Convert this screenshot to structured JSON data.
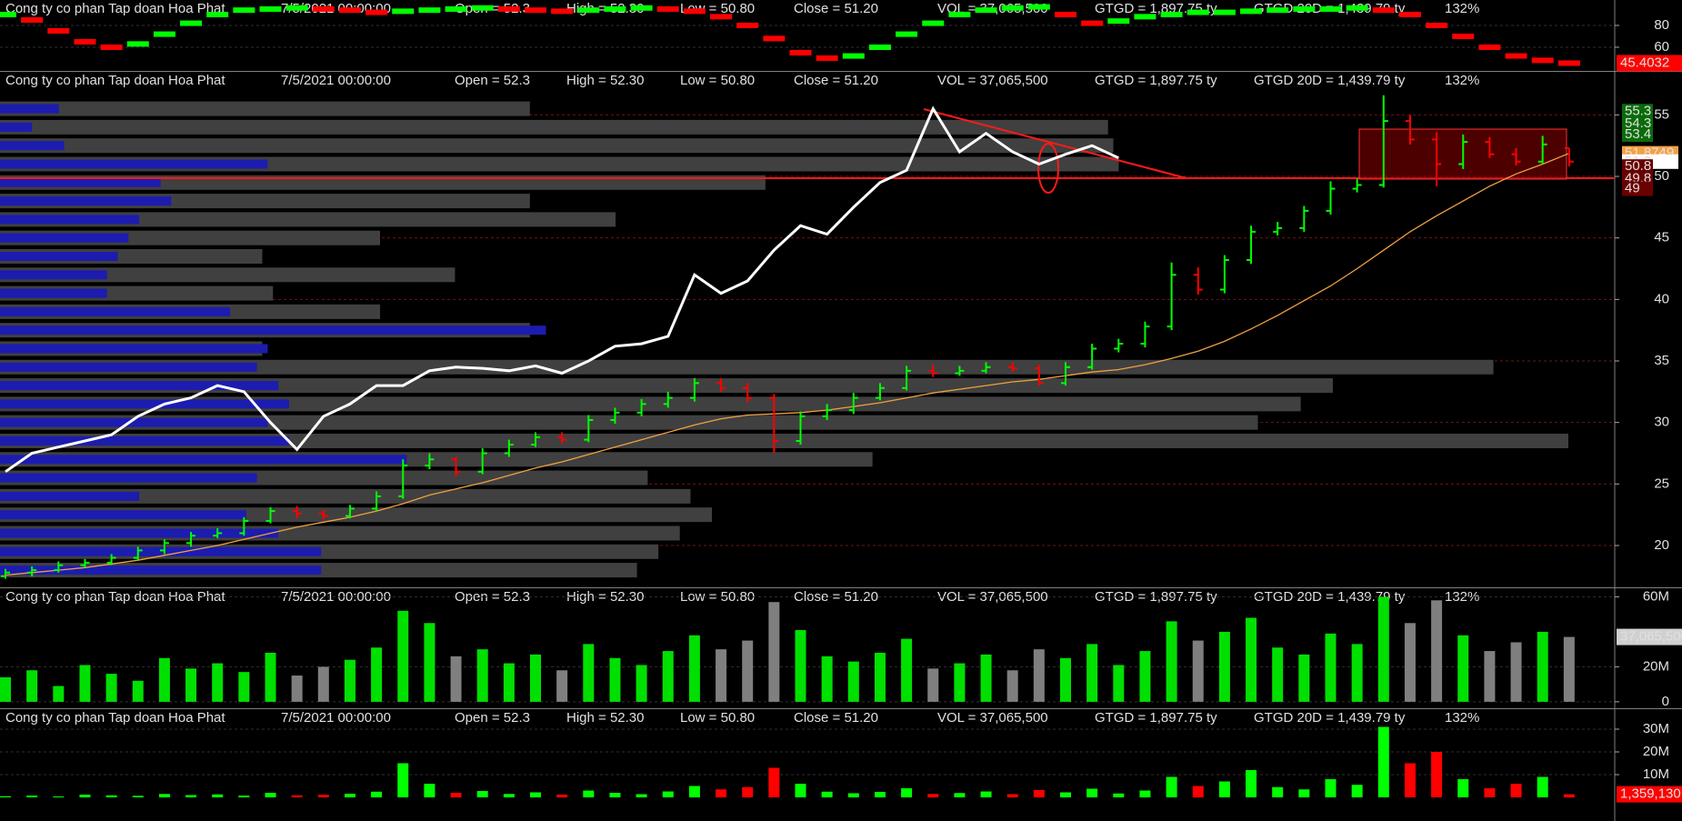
{
  "header": {
    "company": "Cong ty co phan Tap doan Hoa Phat",
    "date": "7/5/2021 00:00:00",
    "open": "Open = 52.3",
    "high": "High = 52.30",
    "low": "Low = 50.80",
    "close": "Close = 51.20",
    "vol": "VOL = 37,065,500",
    "gtgd": "GTGD = 1,897.75  ty",
    "gtgd20": "GTGD 20D = 1,439.79  ty",
    "pct": "132%"
  },
  "chart_data": [
    {
      "type": "oscillator",
      "values": [
        90,
        85,
        75,
        65,
        60,
        63,
        72,
        82,
        90,
        94,
        95,
        96,
        95,
        94,
        92,
        93,
        94,
        95,
        96,
        95,
        94,
        93,
        94,
        95,
        96,
        95,
        93,
        88,
        80,
        68,
        55,
        50,
        52,
        60,
        72,
        82,
        90,
        94,
        96,
        97,
        90,
        82,
        84,
        88,
        90,
        92,
        92,
        93,
        94,
        95,
        95,
        96,
        94,
        90,
        80,
        70,
        60,
        52,
        48,
        45.4032
      ],
      "ylim": [
        38.3,
        103.3
      ],
      "yticks": [
        60,
        80
      ],
      "marker": 45.4032,
      "colors": {
        "up": "#00ff00",
        "down": "#ff0000",
        "marker": "#ff0000"
      }
    },
    {
      "type": "ohlc",
      "open": [
        17.5,
        17.8,
        18.0,
        18.4,
        18.6,
        19.0,
        19.6,
        20.2,
        20.8,
        21.0,
        22.0,
        22.8,
        22.6,
        22.4,
        23.0,
        24.0,
        26.5,
        27.0,
        26.0,
        27.5,
        28.2,
        28.8,
        28.6,
        30.2,
        30.8,
        31.5,
        32.0,
        33.2,
        32.8,
        32.0,
        28.5,
        30.5,
        31.0,
        32.0,
        32.8,
        34.2,
        34.0,
        34.2,
        34.5,
        34.4,
        33.2,
        34.5,
        36.0,
        36.4,
        37.8,
        42.0,
        40.8,
        43.2,
        45.5,
        45.8,
        47.2,
        49.0,
        49.3,
        54.5,
        53.0,
        51.0,
        52.8,
        51.8,
        51.2,
        52.3
      ],
      "high": [
        18.1,
        18.3,
        18.7,
        18.9,
        19.3,
        19.9,
        20.5,
        21.1,
        21.4,
        22.3,
        23.1,
        23.2,
        22.9,
        23.3,
        24.4,
        27.0,
        27.5,
        27.2,
        27.9,
        28.6,
        29.2,
        29.2,
        30.6,
        31.2,
        31.9,
        32.5,
        33.6,
        33.6,
        33.2,
        32.3,
        30.9,
        31.5,
        32.4,
        33.2,
        34.6,
        34.7,
        34.6,
        34.9,
        34.9,
        34.7,
        34.9,
        36.4,
        36.8,
        38.2,
        43.0,
        42.6,
        43.6,
        46.0,
        46.3,
        47.6,
        49.6,
        49.8,
        56.6,
        55.0,
        53.6,
        53.4,
        53.2,
        52.3,
        53.3,
        52.3
      ],
      "low": [
        17.3,
        17.5,
        17.8,
        18.2,
        18.4,
        18.8,
        19.3,
        19.9,
        20.6,
        20.8,
        21.8,
        22.2,
        22.1,
        22.2,
        22.8,
        23.8,
        26.2,
        25.6,
        25.8,
        27.2,
        28.0,
        28.3,
        28.4,
        29.9,
        30.5,
        31.2,
        31.7,
        32.5,
        31.6,
        27.5,
        28.2,
        30.2,
        30.7,
        31.8,
        32.6,
        33.7,
        33.8,
        34.0,
        34.1,
        33.0,
        33.0,
        34.3,
        35.7,
        36.1,
        37.5,
        40.4,
        40.5,
        42.9,
        45.2,
        45.5,
        46.9,
        48.7,
        49.1,
        52.6,
        49.2,
        50.6,
        51.5,
        50.9,
        51.0,
        50.8
      ],
      "close": [
        17.8,
        18.0,
        18.4,
        18.6,
        19.0,
        19.6,
        20.2,
        20.8,
        21.0,
        22.0,
        22.8,
        22.6,
        22.4,
        23.0,
        24.0,
        26.5,
        27.0,
        26.0,
        27.5,
        28.2,
        28.8,
        28.6,
        30.2,
        30.8,
        31.5,
        32.0,
        33.2,
        32.8,
        32.0,
        28.5,
        30.5,
        31.0,
        32.0,
        32.8,
        34.2,
        34.0,
        34.2,
        34.5,
        34.4,
        33.2,
        34.5,
        36.0,
        36.4,
        37.8,
        42.0,
        40.8,
        43.2,
        45.5,
        45.8,
        47.2,
        49.0,
        49.3,
        54.5,
        53.0,
        51.0,
        52.8,
        51.8,
        51.2,
        52.6,
        51.2
      ],
      "colors": {
        "up": "#00ff00",
        "down": "#ff0000"
      },
      "lines": [
        {
          "color": "#f0a040",
          "values": [
            17.6,
            17.8,
            18.0,
            18.2,
            18.5,
            18.8,
            19.2,
            19.6,
            20.0,
            20.5,
            21.0,
            21.5,
            21.9,
            22.3,
            22.8,
            23.4,
            24.1,
            24.6,
            25.1,
            25.7,
            26.3,
            26.8,
            27.4,
            28.0,
            28.6,
            29.2,
            29.8,
            30.3,
            30.6,
            30.7,
            30.8,
            31.0,
            31.3,
            31.6,
            32.0,
            32.4,
            32.7,
            33.0,
            33.3,
            33.5,
            33.8,
            34.1,
            34.3,
            34.7,
            35.2,
            35.8,
            36.6,
            37.6,
            38.7,
            39.9,
            41.1,
            42.5,
            44.0,
            45.5,
            46.8,
            48.0,
            49.2,
            50.2,
            51.0,
            51.8749
          ]
        },
        {
          "color": "#ffffff",
          "values": [
            26.0,
            27.5,
            28.0,
            28.5,
            29.0,
            30.5,
            31.5,
            32.0,
            33.0,
            32.5,
            30.0,
            27.8,
            30.5,
            31.5,
            33.0,
            33.0,
            34.2,
            34.5,
            34.4,
            34.2,
            34.6,
            34.0,
            35.0,
            36.2,
            36.4,
            37.0,
            42.0,
            40.5,
            41.5,
            44.0,
            46.0,
            45.3,
            47.5,
            49.5,
            50.5,
            55.5,
            52.0,
            53.5,
            52.0,
            51.0,
            51.8,
            52.5,
            51.5,
            null,
            null,
            null,
            null,
            null,
            null,
            null,
            null,
            null,
            null,
            null,
            null,
            null,
            null,
            null,
            null,
            null
          ]
        }
      ],
      "volume_profile": {
        "prices": [
          55.5,
          54,
          52.5,
          51,
          49.5,
          48,
          46.5,
          45,
          43.5,
          42,
          40.5,
          39,
          37.5,
          36,
          34.5,
          33,
          31.5,
          30,
          28.5,
          27,
          25.5,
          24,
          22.5,
          21,
          19.5,
          18
        ],
        "values": [
          495,
          1035,
          1040,
          1045,
          715,
          495,
          575,
          355,
          245,
          425,
          255,
          355,
          495,
          245,
          1395,
          1245,
          1215,
          1175,
          1465,
          815,
          605,
          645,
          665,
          635,
          615,
          595
        ],
        "blue_values": [
          55,
          30,
          60,
          250,
          150,
          160,
          130,
          120,
          110,
          100,
          100,
          215,
          510,
          250,
          240,
          260,
          270,
          250,
          270,
          380,
          240,
          130,
          230,
          260,
          300,
          300
        ],
        "colors": {
          "values": "#404040",
          "blue_values": "#1c1cb0"
        }
      },
      "ylim": [
        16.6,
        58.5
      ],
      "yticks": [
        20,
        25,
        30,
        35,
        40,
        45,
        50,
        55
      ],
      "price_labels": [
        {
          "value": 55.3,
          "color": "#0b6b0b"
        },
        {
          "value": 54.3,
          "color": "#0b6b0b"
        },
        {
          "value": 53.4,
          "color": "#0b6b0b"
        },
        {
          "value": 51.8749,
          "color": "#f5a142"
        },
        {
          "value": 51.2,
          "color": "#ffffff"
        },
        {
          "value": 50.8,
          "color": "#6a0000"
        },
        {
          "value": 49.8,
          "color": "#6a0000"
        },
        {
          "value": 49,
          "color": "#6a0000"
        }
      ]
    },
    {
      "type": "bar",
      "values": [
        14000000,
        18000000,
        9000000,
        21000000,
        16000000,
        12000000,
        25000000,
        19000000,
        22000000,
        17000000,
        28000000,
        15000000,
        20000000,
        24000000,
        31000000,
        52000000,
        45000000,
        26000000,
        30000000,
        22000000,
        27000000,
        18000000,
        33000000,
        25000000,
        21000000,
        29000000,
        38000000,
        30000000,
        35000000,
        57000000,
        41000000,
        26000000,
        23000000,
        28000000,
        36000000,
        19000000,
        22000000,
        27000000,
        18000000,
        30000000,
        25000000,
        33000000,
        21000000,
        29000000,
        46000000,
        35000000,
        40000000,
        48000000,
        31000000,
        27000000,
        39000000,
        33000000,
        60000000,
        45000000,
        58000000,
        38000000,
        29000000,
        34000000,
        40000000,
        37065500
      ],
      "ylim": [
        -3700000,
        64900000
      ],
      "yticks": [
        0,
        {
          "value": 20000000,
          "label": "20M"
        },
        {
          "value": 60000000,
          "label": "60M"
        }
      ],
      "marker": {
        "value": 37065500,
        "label": "37,065,500"
      },
      "colors": {
        "up": "#00e000",
        "down": "#7f7f7f",
        "marker": "#d0d0d0"
      }
    },
    {
      "type": "bar",
      "values": [
        500000,
        800000,
        400000,
        1200000,
        900000,
        700000,
        1500000,
        1000000,
        1300000,
        800000,
        2000000,
        900000,
        1100000,
        1600000,
        2500000,
        15000000,
        6000000,
        2000000,
        2800000,
        1500000,
        2200000,
        1200000,
        3000000,
        2000000,
        1400000,
        2600000,
        5000000,
        3500000,
        4500000,
        13000000,
        6000000,
        2500000,
        1800000,
        2400000,
        4000000,
        1500000,
        1900000,
        2600000,
        1400000,
        3200000,
        2200000,
        3800000,
        1700000,
        3000000,
        9000000,
        5000000,
        7000000,
        12000000,
        4500000,
        3500000,
        8000000,
        5500000,
        31000000,
        15000000,
        20000000,
        8000000,
        4000000,
        6000000,
        9000000,
        1359130
      ],
      "ylim": [
        -1200000,
        38800000
      ],
      "yticks": [
        {
          "value": 10000000,
          "label": "10M"
        },
        {
          "value": 20000000,
          "label": "20M"
        },
        {
          "value": 30000000,
          "label": "30M"
        }
      ],
      "marker": {
        "value": 1359130,
        "label": "1,359,130"
      },
      "colors": {
        "up": "#00ff00",
        "down": "#ff0000",
        "marker": "#ff0000"
      }
    }
  ]
}
